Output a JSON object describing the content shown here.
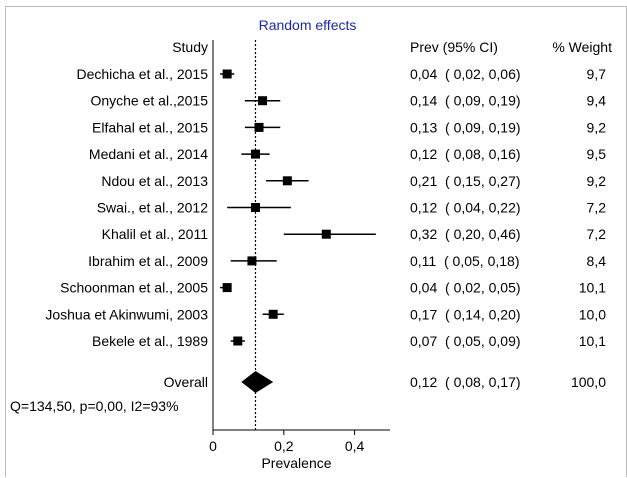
{
  "chart_data": {
    "type": "forest",
    "title": "Random effects",
    "xlabel": "Prevalence",
    "xlim": [
      0,
      0.5
    ],
    "xticks": [
      {
        "value": 0,
        "label": "0"
      },
      {
        "value": 0.2,
        "label": "0,2"
      },
      {
        "value": 0.4,
        "label": "0,4"
      }
    ],
    "reference_line": 0.12,
    "headers": {
      "study": "Study",
      "prev": "Prev (95% CI)",
      "weight": "% Weight"
    },
    "studies": [
      {
        "name": "Dechicha et al., 2015",
        "prev": 0.04,
        "lo": 0.02,
        "hi": 0.06,
        "ci_text": "0,04  ( 0,02, 0,06)",
        "weight": "9,7"
      },
      {
        "name": "Onyche et al.,2015",
        "prev": 0.14,
        "lo": 0.09,
        "hi": 0.19,
        "ci_text": "0,14  ( 0,09, 0,19)",
        "weight": "9,4"
      },
      {
        "name": "Elfahal et al., 2015",
        "prev": 0.13,
        "lo": 0.09,
        "hi": 0.19,
        "ci_text": "0,13  ( 0,09, 0,19)",
        "weight": "9,2"
      },
      {
        "name": "Medani et al., 2014",
        "prev": 0.12,
        "lo": 0.08,
        "hi": 0.16,
        "ci_text": "0,12  ( 0,08, 0,16)",
        "weight": "9,5"
      },
      {
        "name": "Ndou et al., 2013",
        "prev": 0.21,
        "lo": 0.15,
        "hi": 0.27,
        "ci_text": "0,21  ( 0,15, 0,27)",
        "weight": "9,2"
      },
      {
        "name": "Swai., et al., 2012",
        "prev": 0.12,
        "lo": 0.04,
        "hi": 0.22,
        "ci_text": "0,12  ( 0,04, 0,22)",
        "weight": "7,2"
      },
      {
        "name": "Khalil et al., 2011",
        "prev": 0.32,
        "lo": 0.2,
        "hi": 0.46,
        "ci_text": "0,32  ( 0,20, 0,46)",
        "weight": "7,2"
      },
      {
        "name": "Ibrahim et al., 2009",
        "prev": 0.11,
        "lo": 0.05,
        "hi": 0.18,
        "ci_text": "0,11  ( 0,05, 0,18)",
        "weight": "8,4"
      },
      {
        "name": "Schoonman et al., 2005",
        "prev": 0.04,
        "lo": 0.02,
        "hi": 0.05,
        "ci_text": "0,04  ( 0,02, 0,05)",
        "weight": "10,1"
      },
      {
        "name": "Joshua et Akinwumi, 2003",
        "prev": 0.17,
        "lo": 0.14,
        "hi": 0.2,
        "ci_text": "0,17  ( 0,14, 0,20)",
        "weight": "10,0"
      },
      {
        "name": "Bekele et al., 1989",
        "prev": 0.07,
        "lo": 0.05,
        "hi": 0.09,
        "ci_text": "0,07  ( 0,05, 0,09)",
        "weight": "10,1"
      }
    ],
    "overall": {
      "name": "Overall",
      "prev": 0.12,
      "lo": 0.08,
      "hi": 0.17,
      "ci_text": "0,12  ( 0,08, 0,17)",
      "weight": "100,0"
    },
    "heterogeneity": "Q=134,50, p=0,00, I2=93%",
    "colors": {
      "title": "#1f2a9c",
      "marks": "#000000",
      "frame": "#bdbdbd"
    }
  }
}
